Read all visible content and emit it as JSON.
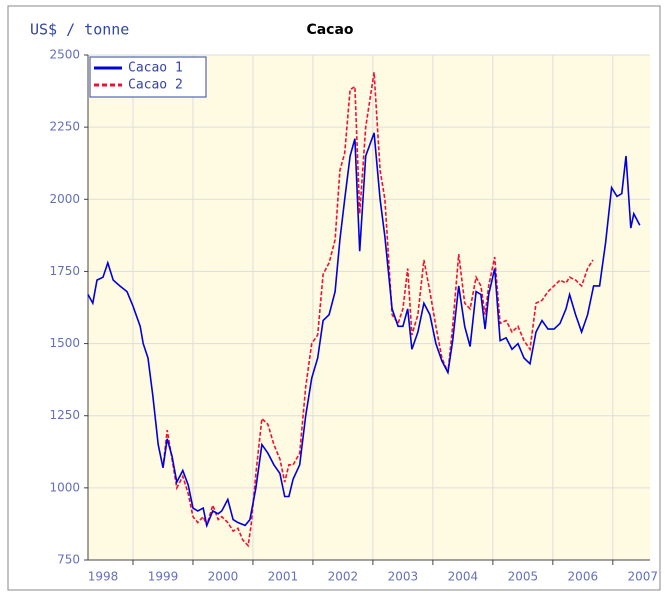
{
  "chart_data": {
    "type": "line",
    "title": "Cacao",
    "y_label": "US$ / tonne",
    "xlim": [
      1998.25,
      2007.62
    ],
    "ylim": [
      750,
      2500
    ],
    "yticks": [
      750,
      1000,
      1250,
      1500,
      1750,
      2000,
      2250,
      2500
    ],
    "xticks": [
      {
        "value": 1998.5,
        "label": "1998"
      },
      {
        "value": 1999.5,
        "label": "1999"
      },
      {
        "value": 2000.5,
        "label": "2000"
      },
      {
        "value": 2001.5,
        "label": "2001"
      },
      {
        "value": 2002.5,
        "label": "2002"
      },
      {
        "value": 2003.5,
        "label": "2003"
      },
      {
        "value": 2004.5,
        "label": "2004"
      },
      {
        "value": 2005.5,
        "label": "2005"
      },
      {
        "value": 2006.5,
        "label": "2006"
      },
      {
        "value": 2007.5,
        "label": "2007"
      }
    ],
    "xgrid": [
      1999,
      2000,
      2001,
      2002,
      2003,
      2004,
      2005,
      2006,
      2007
    ],
    "grid": true,
    "legend": "top-left",
    "series": [
      {
        "name": "Cacao 1",
        "color": "#0000dd",
        "dash": false,
        "x": [
          1998.25,
          1998.33,
          1998.4,
          1998.5,
          1998.58,
          1998.67,
          1998.78,
          1998.9,
          1999.0,
          1999.12,
          1999.17,
          1999.25,
          1999.33,
          1999.42,
          1999.5,
          1999.57,
          1999.65,
          1999.73,
          1999.83,
          1999.92,
          2000.0,
          2000.08,
          2000.17,
          2000.23,
          2000.33,
          2000.42,
          2000.48,
          2000.58,
          2000.67,
          2000.75,
          2000.87,
          2000.95,
          2001.05,
          2001.15,
          2001.25,
          2001.35,
          2001.45,
          2001.53,
          2001.6,
          2001.67,
          2001.78,
          2001.88,
          2001.98,
          2002.08,
          2002.17,
          2002.27,
          2002.37,
          2002.45,
          2002.53,
          2002.62,
          2002.7,
          2002.78,
          2002.88,
          2003.02,
          2003.12,
          2003.2,
          2003.32,
          2003.42,
          2003.5,
          2003.58,
          2003.65,
          2003.75,
          2003.85,
          2003.95,
          2004.05,
          2004.15,
          2004.25,
          2004.33,
          2004.43,
          2004.53,
          2004.62,
          2004.72,
          2004.8,
          2004.87,
          2004.93,
          2005.03,
          2005.12,
          2005.22,
          2005.32,
          2005.42,
          2005.52,
          2005.62,
          2005.72,
          2005.82,
          2005.92,
          2006.02,
          2006.12,
          2006.22,
          2006.28,
          2006.38,
          2006.48,
          2006.58,
          2006.68,
          2006.78,
          2006.88,
          2006.98,
          2007.07,
          2007.15,
          2007.22,
          2007.3,
          2007.35,
          2007.45
        ],
        "values": [
          1670,
          1640,
          1720,
          1730,
          1780,
          1720,
          1700,
          1680,
          1630,
          1560,
          1500,
          1450,
          1320,
          1150,
          1070,
          1170,
          1110,
          1020,
          1060,
          1010,
          930,
          920,
          930,
          870,
          920,
          910,
          920,
          960,
          890,
          880,
          870,
          890,
          1000,
          1150,
          1120,
          1080,
          1050,
          970,
          970,
          1030,
          1080,
          1250,
          1380,
          1450,
          1580,
          1600,
          1680,
          1860,
          2000,
          2150,
          2210,
          1820,
          2150,
          2230,
          2000,
          1870,
          1620,
          1560,
          1560,
          1620,
          1480,
          1540,
          1640,
          1600,
          1500,
          1440,
          1400,
          1510,
          1700,
          1560,
          1490,
          1680,
          1670,
          1550,
          1670,
          1760,
          1510,
          1520,
          1480,
          1500,
          1450,
          1430,
          1540,
          1580,
          1550,
          1550,
          1570,
          1620,
          1670,
          1600,
          1540,
          1600,
          1700,
          1700,
          1850,
          2040,
          2010,
          2020,
          2150,
          1900,
          1950,
          1910
        ]
      },
      {
        "name": "Cacao 2",
        "color": "#ee1133",
        "dash": true,
        "x": [
          1999.5,
          1999.57,
          1999.65,
          1999.73,
          1999.83,
          1999.92,
          2000.0,
          2000.08,
          2000.17,
          2000.23,
          2000.33,
          2000.42,
          2000.48,
          2000.58,
          2000.67,
          2000.75,
          2000.83,
          2000.92,
          2000.97,
          2001.05,
          2001.15,
          2001.25,
          2001.35,
          2001.45,
          2001.53,
          2001.6,
          2001.67,
          2001.78,
          2001.88,
          2001.98,
          2002.08,
          2002.17,
          2002.27,
          2002.37,
          2002.45,
          2002.53,
          2002.62,
          2002.7,
          2002.78,
          2002.88,
          2003.02,
          2003.12,
          2003.2,
          2003.32,
          2003.42,
          2003.5,
          2003.58,
          2003.65,
          2003.75,
          2003.85,
          2003.95,
          2004.05,
          2004.15,
          2004.25,
          2004.33,
          2004.43,
          2004.53,
          2004.62,
          2004.72,
          2004.8,
          2004.87,
          2004.93,
          2005.03,
          2005.12,
          2005.22,
          2005.32,
          2005.42,
          2005.52,
          2005.62,
          2005.72,
          2005.82,
          2005.92,
          2006.02,
          2006.12,
          2006.22,
          2006.28,
          2006.38,
          2006.48,
          2006.58,
          2006.67
        ],
        "values": [
          1070,
          1200,
          1100,
          1000,
          1040,
          980,
          900,
          880,
          900,
          870,
          940,
          890,
          900,
          880,
          850,
          860,
          820,
          800,
          870,
          1050,
          1240,
          1220,
          1150,
          1100,
          1020,
          1080,
          1080,
          1120,
          1350,
          1500,
          1530,
          1740,
          1780,
          1860,
          2100,
          2160,
          2380,
          2390,
          1950,
          2250,
          2440,
          2100,
          2000,
          1600,
          1570,
          1620,
          1760,
          1530,
          1600,
          1790,
          1680,
          1560,
          1450,
          1400,
          1560,
          1810,
          1640,
          1620,
          1730,
          1700,
          1600,
          1700,
          1800,
          1570,
          1580,
          1540,
          1560,
          1510,
          1480,
          1640,
          1650,
          1680,
          1700,
          1720,
          1710,
          1730,
          1720,
          1700,
          1760,
          1790
        ]
      }
    ]
  }
}
